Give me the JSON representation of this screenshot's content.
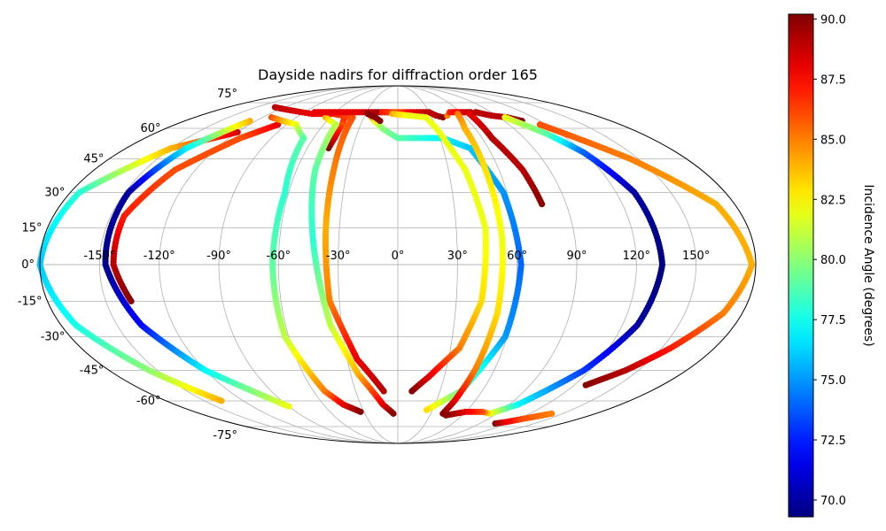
{
  "chart_data": {
    "type": "scatter",
    "projection": "mollweide",
    "title": "Dayside nadirs for diffraction order 165",
    "xlabel": "",
    "ylabel": "",
    "grid": true,
    "xlim": [
      -180,
      180
    ],
    "ylim": [
      -90,
      90
    ],
    "lon_ticks": [
      -150,
      -120,
      -90,
      -60,
      -30,
      0,
      30,
      60,
      90,
      120,
      150
    ],
    "lon_tick_labels": [
      "-150°",
      "-120°",
      "-90°",
      "-60°",
      "-30°",
      "0°",
      "30°",
      "60°",
      "90°",
      "120°",
      "150°"
    ],
    "lat_ticks": [
      75,
      60,
      45,
      30,
      15,
      0,
      -15,
      -30,
      -45,
      -60,
      -75
    ],
    "lat_tick_labels": [
      "75°",
      "60°",
      "45°",
      "30°",
      "15°",
      "0°",
      "-15°",
      "-30°",
      "-45°",
      "-60°",
      "-75°"
    ],
    "colorbar": {
      "label": "Incidence Angle (degrees)",
      "colormap": "jet",
      "vmin": 69.3,
      "vmax": 90.2,
      "ticks": [
        70.0,
        72.5,
        75.0,
        77.5,
        80.0,
        82.5,
        85.0,
        87.5,
        90.0
      ],
      "tick_labels": [
        "70.0",
        "72.5",
        "75.0",
        "77.5",
        "80.0",
        "82.5",
        "85.0",
        "87.5",
        "90.0"
      ]
    },
    "color_by": "incidence_angle",
    "series": [
      {
        "points": [
          [
            -120,
            58,
            88.5
          ],
          [
            -150,
            50,
            84
          ],
          [
            -175,
            30,
            78
          ],
          [
            -180,
            0,
            76
          ],
          [
            -172,
            -25,
            77.5
          ],
          [
            -155,
            -45,
            80
          ],
          [
            -137,
            -60,
            84
          ]
        ]
      },
      {
        "points": [
          [
            -97,
            62,
            88
          ],
          [
            -112,
            55,
            86
          ],
          [
            -132,
            40,
            86
          ],
          [
            -143,
            20,
            87
          ],
          [
            -143,
            0,
            89
          ],
          [
            -137,
            -15,
            90
          ]
        ]
      },
      {
        "points": [
          [
            -125,
            64,
            84
          ],
          [
            -140,
            50,
            77
          ],
          [
            -148,
            30,
            70
          ],
          [
            -147,
            0,
            69.5
          ],
          [
            -137,
            -25,
            72
          ],
          [
            -120,
            -45,
            77
          ],
          [
            -90,
            -63,
            82
          ]
        ]
      },
      {
        "points": [
          [
            -112,
            66,
            86
          ],
          [
            -82,
            62,
            82
          ],
          [
            -67,
            55,
            79
          ],
          [
            -62,
            30,
            78
          ],
          [
            -63,
            0,
            79
          ],
          [
            -62,
            -30,
            81
          ],
          [
            -52,
            -55,
            85
          ],
          [
            -44,
            -62,
            88
          ],
          [
            -33,
            -66,
            90
          ]
        ]
      },
      {
        "points": [
          [
            -48,
            68,
            88
          ],
          [
            -45,
            62,
            86
          ],
          [
            -45,
            55,
            88
          ],
          [
            -46,
            50,
            90
          ]
        ]
      },
      {
        "points": [
          [
            -130,
            72,
            89
          ],
          [
            -80,
            68,
            88
          ],
          [
            -60,
            68,
            87
          ],
          [
            -40,
            66,
            86
          ],
          [
            -38,
            40,
            85
          ],
          [
            -37,
            15,
            84
          ],
          [
            -35,
            -15,
            85
          ],
          [
            -24,
            -40,
            88
          ],
          [
            -10,
            -55,
            89
          ]
        ]
      },
      {
        "points": [
          [
            -64,
            66,
            84
          ],
          [
            -50,
            62,
            81
          ],
          [
            -49,
            40,
            79
          ],
          [
            -43,
            10,
            78
          ],
          [
            -36,
            -25,
            81
          ],
          [
            -25,
            -47,
            84
          ],
          [
            -12,
            -62,
            88
          ],
          [
            -4,
            -67,
            90
          ]
        ]
      },
      {
        "points": [
          [
            -25,
            67,
            85
          ],
          [
            -12,
            60,
            80
          ],
          [
            0,
            55,
            79
          ],
          [
            15,
            55,
            78
          ],
          [
            32,
            55,
            77
          ],
          [
            48,
            50,
            76
          ],
          [
            58,
            30,
            75
          ],
          [
            62,
            0,
            74
          ],
          [
            59,
            -30,
            75
          ],
          [
            45,
            -55,
            79
          ],
          [
            25,
            -65,
            83
          ]
        ]
      },
      {
        "points": [
          [
            -80,
            69,
            88
          ],
          [
            -55,
            69,
            88
          ],
          [
            -40,
            69,
            88
          ],
          [
            -25,
            69,
            89
          ],
          [
            -10,
            69,
            90
          ]
        ]
      },
      {
        "points": [
          [
            -28,
            68,
            90
          ],
          [
            -20,
            66,
            90
          ],
          [
            -15,
            64,
            90
          ]
        ]
      },
      {
        "points": [
          [
            -15,
            69,
            87
          ],
          [
            0,
            69,
            86
          ],
          [
            15,
            69,
            88
          ],
          [
            30,
            69,
            89
          ],
          [
            35,
            67,
            89
          ],
          [
            40,
            66,
            90
          ]
        ]
      },
      {
        "points": [
          [
            -5,
            68,
            84
          ],
          [
            10,
            67,
            82
          ],
          [
            25,
            66,
            82
          ],
          [
            30,
            60,
            82
          ],
          [
            40,
            40,
            82
          ],
          [
            45,
            15,
            82
          ],
          [
            43,
            -15,
            83
          ],
          [
            35,
            -35,
            85
          ],
          [
            20,
            -48,
            88
          ],
          [
            10,
            -55,
            90
          ]
        ]
      },
      {
        "points": [
          [
            45,
            67,
            85
          ],
          [
            50,
            69,
            87
          ],
          [
            60,
            69,
            88
          ],
          [
            70,
            69,
            89
          ]
        ]
      },
      {
        "points": [
          [
            56,
            68,
            85
          ],
          [
            52,
            60,
            84
          ],
          [
            52,
            40,
            83
          ],
          [
            53,
            10,
            82
          ],
          [
            52,
            -20,
            83
          ],
          [
            48,
            -45,
            85
          ],
          [
            44,
            -60,
            88
          ],
          [
            41,
            -67,
            90
          ]
        ]
      },
      {
        "points": [
          [
            67,
            68,
            88
          ],
          [
            67,
            55,
            89
          ],
          [
            74,
            40,
            89
          ],
          [
            77,
            25,
            90
          ]
        ]
      },
      {
        "points": [
          [
            75,
            69,
            89
          ],
          [
            85,
            67,
            89
          ],
          [
            97,
            66,
            89
          ],
          [
            105,
            64,
            90
          ]
        ]
      },
      {
        "points": [
          [
            95,
            66,
            82
          ],
          [
            110,
            57,
            79
          ],
          [
            120,
            48,
            74
          ],
          [
            130,
            30,
            70
          ],
          [
            133,
            0,
            69.3
          ],
          [
            128,
            -25,
            70
          ],
          [
            116,
            -45,
            73
          ],
          [
            97,
            -62,
            77
          ],
          [
            84,
            -67,
            82
          ],
          [
            75,
            -66,
            86
          ],
          [
            60,
            -66,
            88
          ],
          [
            45,
            -68,
            90
          ]
        ]
      },
      {
        "points": [
          [
            115,
            62,
            86
          ],
          [
            145,
            45,
            85
          ],
          [
            170,
            25,
            84
          ],
          [
            178,
            0,
            84
          ],
          [
            170,
            -20,
            85
          ],
          [
            155,
            -35,
            87
          ],
          [
            142,
            -45,
            89
          ],
          [
            128,
            -52,
            90
          ]
        ]
      },
      {
        "points": [
          [
            107,
            -73,
            90
          ],
          [
            115,
            -72,
            88
          ],
          [
            125,
            -70,
            86
          ],
          [
            140,
            -67,
            85
          ]
        ]
      }
    ]
  }
}
